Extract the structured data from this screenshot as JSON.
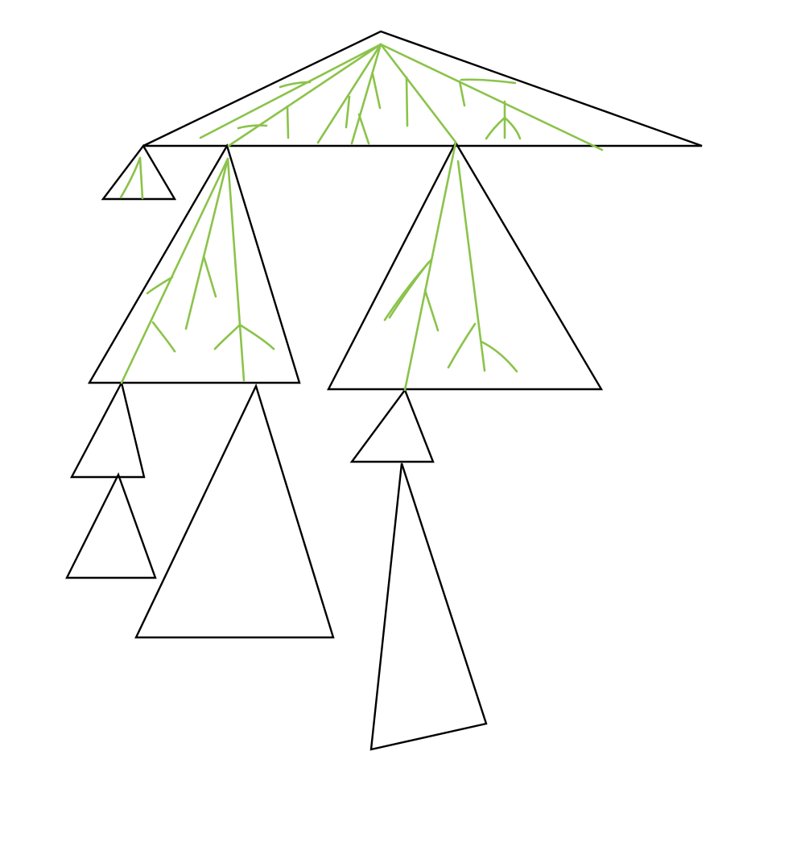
{
  "colors": {
    "background": "#ffffff",
    "outline": "#000000",
    "green": "#8bc34a"
  },
  "diagram": {
    "type": "triangle-tree sketch",
    "triangle_count": 9,
    "green_sketched_triangles": 4
  }
}
